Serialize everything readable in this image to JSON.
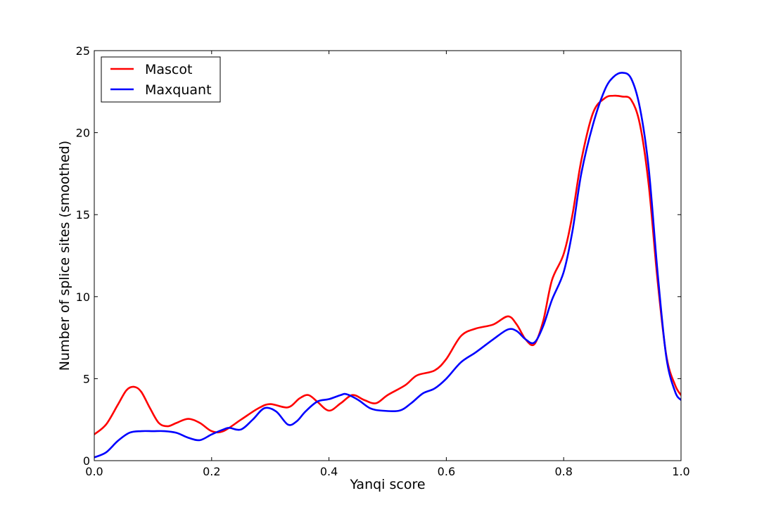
{
  "chart_data": {
    "type": "line",
    "xlabel": "Yanqi score",
    "ylabel": "Number of splice sites (smoothed)",
    "xlim": [
      0.0,
      1.0
    ],
    "ylim": [
      0,
      25
    ],
    "xticks": [
      "0.0",
      "0.2",
      "0.4",
      "0.6",
      "0.8",
      "1.0"
    ],
    "yticks": [
      "0",
      "5",
      "10",
      "15",
      "20",
      "25"
    ],
    "grid": false,
    "legend_position": "top-left",
    "series": [
      {
        "name": "Mascot",
        "color": "#ff0000",
        "points": [
          [
            0.0,
            1.6
          ],
          [
            0.02,
            2.2
          ],
          [
            0.04,
            3.4
          ],
          [
            0.055,
            4.3
          ],
          [
            0.068,
            4.5
          ],
          [
            0.08,
            4.2
          ],
          [
            0.095,
            3.2
          ],
          [
            0.11,
            2.3
          ],
          [
            0.125,
            2.1
          ],
          [
            0.14,
            2.3
          ],
          [
            0.16,
            2.55
          ],
          [
            0.18,
            2.3
          ],
          [
            0.2,
            1.8
          ],
          [
            0.22,
            1.8
          ],
          [
            0.25,
            2.5
          ],
          [
            0.28,
            3.2
          ],
          [
            0.3,
            3.45
          ],
          [
            0.33,
            3.25
          ],
          [
            0.35,
            3.8
          ],
          [
            0.365,
            4.0
          ],
          [
            0.38,
            3.6
          ],
          [
            0.4,
            3.05
          ],
          [
            0.42,
            3.5
          ],
          [
            0.44,
            4.0
          ],
          [
            0.46,
            3.7
          ],
          [
            0.48,
            3.5
          ],
          [
            0.5,
            4.0
          ],
          [
            0.53,
            4.6
          ],
          [
            0.55,
            5.2
          ],
          [
            0.58,
            5.5
          ],
          [
            0.6,
            6.2
          ],
          [
            0.625,
            7.6
          ],
          [
            0.65,
            8.05
          ],
          [
            0.68,
            8.3
          ],
          [
            0.705,
            8.8
          ],
          [
            0.72,
            8.3
          ],
          [
            0.735,
            7.4
          ],
          [
            0.75,
            7.1
          ],
          [
            0.765,
            8.5
          ],
          [
            0.78,
            11.0
          ],
          [
            0.8,
            12.6
          ],
          [
            0.815,
            15.0
          ],
          [
            0.83,
            18.3
          ],
          [
            0.85,
            21.2
          ],
          [
            0.87,
            22.1
          ],
          [
            0.885,
            22.25
          ],
          [
            0.9,
            22.2
          ],
          [
            0.915,
            22.0
          ],
          [
            0.93,
            20.5
          ],
          [
            0.945,
            16.8
          ],
          [
            0.96,
            11.0
          ],
          [
            0.975,
            6.4
          ],
          [
            0.99,
            4.6
          ],
          [
            1.0,
            4.0
          ]
        ]
      },
      {
        "name": "Maxquant",
        "color": "#0000ff",
        "points": [
          [
            0.0,
            0.2
          ],
          [
            0.02,
            0.5
          ],
          [
            0.04,
            1.2
          ],
          [
            0.06,
            1.7
          ],
          [
            0.08,
            1.8
          ],
          [
            0.1,
            1.8
          ],
          [
            0.12,
            1.8
          ],
          [
            0.14,
            1.7
          ],
          [
            0.16,
            1.4
          ],
          [
            0.18,
            1.25
          ],
          [
            0.2,
            1.6
          ],
          [
            0.22,
            1.9
          ],
          [
            0.23,
            2.0
          ],
          [
            0.25,
            1.9
          ],
          [
            0.27,
            2.5
          ],
          [
            0.29,
            3.2
          ],
          [
            0.31,
            3.0
          ],
          [
            0.33,
            2.2
          ],
          [
            0.345,
            2.4
          ],
          [
            0.36,
            3.0
          ],
          [
            0.38,
            3.6
          ],
          [
            0.4,
            3.75
          ],
          [
            0.42,
            4.0
          ],
          [
            0.43,
            4.05
          ],
          [
            0.45,
            3.7
          ],
          [
            0.47,
            3.2
          ],
          [
            0.49,
            3.05
          ],
          [
            0.52,
            3.05
          ],
          [
            0.54,
            3.5
          ],
          [
            0.56,
            4.1
          ],
          [
            0.58,
            4.4
          ],
          [
            0.6,
            5.0
          ],
          [
            0.625,
            6.0
          ],
          [
            0.65,
            6.6
          ],
          [
            0.68,
            7.4
          ],
          [
            0.705,
            8.0
          ],
          [
            0.72,
            7.9
          ],
          [
            0.735,
            7.4
          ],
          [
            0.75,
            7.2
          ],
          [
            0.765,
            8.2
          ],
          [
            0.78,
            9.8
          ],
          [
            0.8,
            11.5
          ],
          [
            0.815,
            14.0
          ],
          [
            0.83,
            17.5
          ],
          [
            0.85,
            20.5
          ],
          [
            0.87,
            22.6
          ],
          [
            0.885,
            23.4
          ],
          [
            0.9,
            23.65
          ],
          [
            0.915,
            23.3
          ],
          [
            0.93,
            21.5
          ],
          [
            0.945,
            17.8
          ],
          [
            0.96,
            11.5
          ],
          [
            0.975,
            6.3
          ],
          [
            0.99,
            4.2
          ],
          [
            1.0,
            3.7
          ]
        ]
      }
    ]
  }
}
